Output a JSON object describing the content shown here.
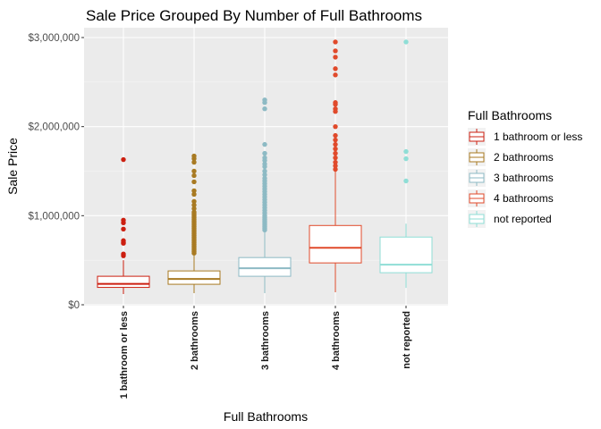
{
  "chart_data": {
    "type": "boxplot",
    "title": "Sale Price Grouped By Number of Full Bathrooms",
    "xlabel": "Full Bathrooms",
    "ylabel": "Sale Price",
    "ylim": [
      0,
      3000000
    ],
    "y_ticks": [
      0,
      1000000,
      2000000,
      3000000
    ],
    "y_tick_labels": [
      "$0",
      "$1,000,000",
      "$2,000,000",
      "$3,000,000"
    ],
    "grid": true,
    "legend_title": "Full Bathrooms",
    "legend_position": "right",
    "categories": [
      "1 bathroom or less",
      "2 bathrooms",
      "3 bathrooms",
      "4 bathrooms",
      "not reported"
    ],
    "series": [
      {
        "name": "1 bathroom or less",
        "color": "#cc1f10",
        "whisker_low": 120000,
        "q1": 195000,
        "median": 235000,
        "q3": 320000,
        "whisker_high": 500000,
        "outliers": [
          1630000,
          950000,
          920000,
          850000,
          720000,
          700000,
          690000,
          570000,
          550000
        ]
      },
      {
        "name": "2 bathrooms",
        "color": "#a87a22",
        "whisker_low": 130000,
        "q1": 230000,
        "median": 290000,
        "q3": 380000,
        "whisker_high": 560000,
        "outliers": [
          1670000,
          1640000,
          1600000,
          1500000,
          1450000,
          1380000,
          1280000,
          1240000,
          1160000,
          1120000,
          1080000,
          1040000,
          1020000,
          1000000,
          980000,
          960000,
          940000,
          920000,
          900000,
          880000,
          860000,
          840000,
          820000,
          800000,
          780000,
          760000,
          740000,
          720000,
          700000,
          680000,
          660000,
          640000,
          620000,
          600000,
          580000
        ]
      },
      {
        "name": "3 bathrooms",
        "color": "#8dbac4",
        "whisker_low": 130000,
        "q1": 320000,
        "median": 410000,
        "q3": 530000,
        "whisker_high": 830000,
        "outliers": [
          2300000,
          2270000,
          2200000,
          1800000,
          1700000,
          1650000,
          1620000,
          1580000,
          1550000,
          1500000,
          1460000,
          1420000,
          1390000,
          1360000,
          1330000,
          1300000,
          1270000,
          1240000,
          1210000,
          1180000,
          1150000,
          1120000,
          1090000,
          1060000,
          1030000,
          1000000,
          980000,
          960000,
          940000,
          920000,
          900000,
          880000,
          860000,
          840000
        ]
      },
      {
        "name": "4 bathrooms",
        "color": "#e04a2b",
        "whisker_low": 140000,
        "q1": 470000,
        "median": 640000,
        "q3": 890000,
        "whisker_high": 1500000,
        "outliers": [
          2950000,
          2850000,
          2780000,
          2650000,
          2580000,
          2270000,
          2250000,
          2200000,
          2170000,
          2000000,
          1900000,
          1850000,
          1800000,
          1750000,
          1700000,
          1650000,
          1600000,
          1560000,
          1520000
        ]
      },
      {
        "name": "not reported",
        "color": "#8fded6",
        "whisker_low": 190000,
        "q1": 360000,
        "median": 450000,
        "q3": 760000,
        "whisker_high": 910000,
        "outliers": [
          2950000,
          1720000,
          1640000,
          1390000
        ]
      }
    ]
  }
}
